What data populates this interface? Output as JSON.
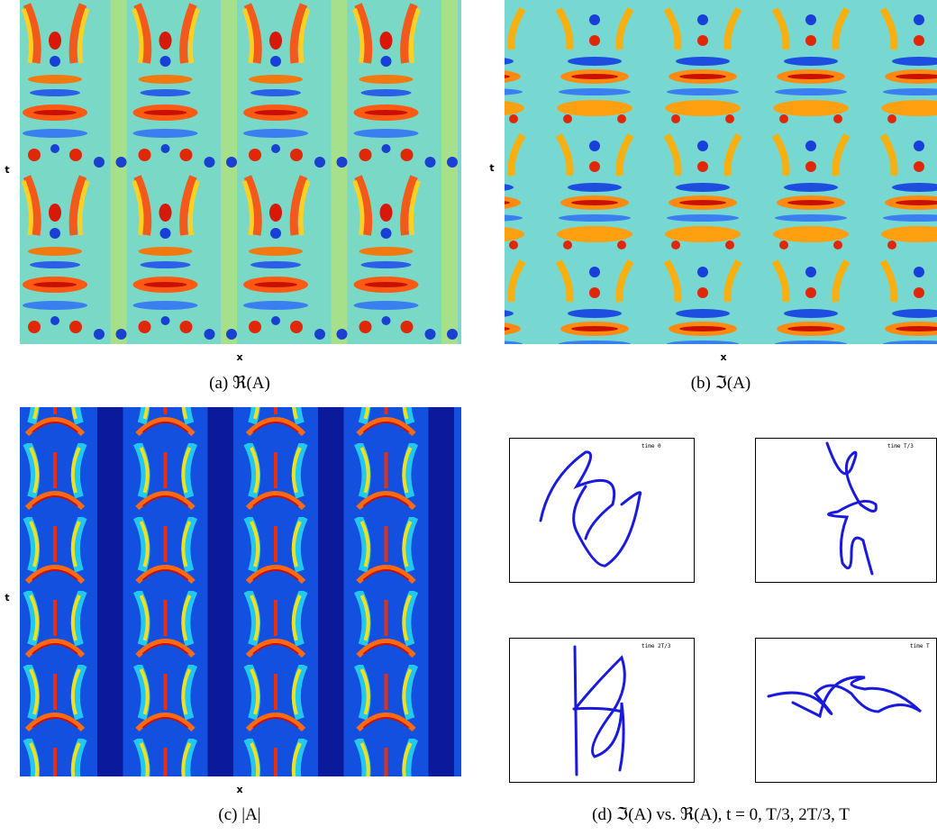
{
  "panels": [
    {
      "y_label": "t",
      "x_label": "x",
      "caption": "(a) ℜ(A)"
    },
    {
      "y_label": "t",
      "x_label": "x",
      "caption": "(b) ℑ(A)"
    },
    {
      "y_label": "t",
      "x_label": "x",
      "caption": "(c) |A|"
    },
    {
      "subplots": [
        {
          "title": "time 0"
        },
        {
          "title": "time T/3"
        },
        {
          "title": "time 2T/3"
        },
        {
          "title": "time T"
        }
      ],
      "caption": "(d) ℑ(A) vs. ℜ(A),  t = 0, T/3, 2T/3, T"
    }
  ]
}
